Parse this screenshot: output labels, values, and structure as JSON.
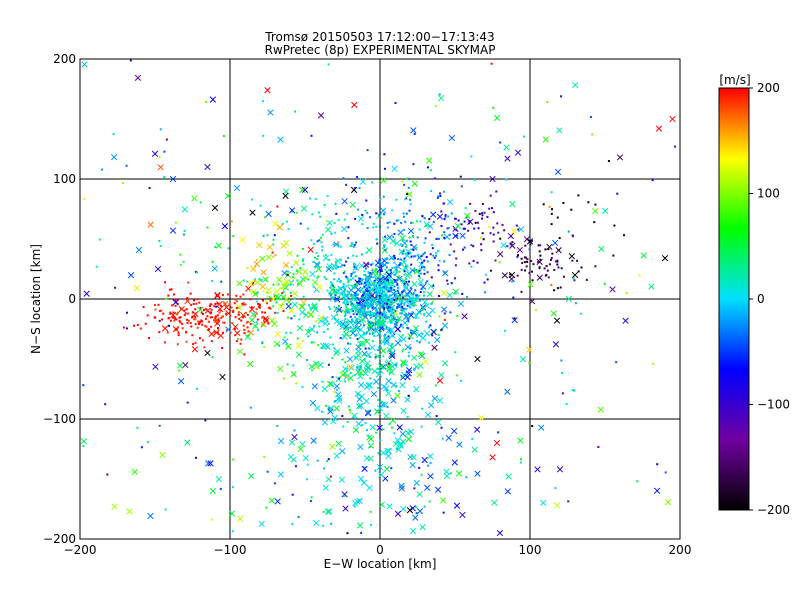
{
  "chart_data": {
    "type": "scatter",
    "title": "Tromsø 20150503 17:12:00−17:13:43",
    "subtitle": "RwPretec (8p) EXPERIMENTAL SKYMAP",
    "xlabel": "E−W location [km]",
    "ylabel": "N−S location [km]",
    "xlim": [
      -200,
      200
    ],
    "ylim": [
      -200,
      200
    ],
    "xticks": [
      -200,
      -100,
      0,
      100,
      200
    ],
    "yticks": [
      -200,
      -100,
      0,
      100,
      200
    ],
    "xtick_labels": [
      "−200",
      "−100",
      "0",
      "100",
      "200"
    ],
    "ytick_labels": [
      "−200",
      "−100",
      "0",
      "100",
      "200"
    ],
    "grid": true,
    "colorbar": {
      "label": "[m/s]",
      "range": [
        -200,
        200
      ],
      "ticks": [
        200,
        100,
        0,
        -100,
        -200
      ],
      "tick_labels": [
        "200",
        "100",
        "0",
        "−100",
        "−200"
      ],
      "colormap": [
        "#000000",
        "#7000a0",
        "#0000ff",
        "#00e0ff",
        "#00ff00",
        "#ffff00",
        "#ff0000"
      ]
    },
    "marker_types": [
      "dot",
      "x"
    ],
    "clusters": [
      {
        "center": [
          0,
          0
        ],
        "spread": [
          14,
          16
        ],
        "count": 650,
        "velocity": -20,
        "velocity_spread": 30,
        "markers": "dot"
      },
      {
        "center": [
          -5,
          -35
        ],
        "spread": [
          22,
          45
        ],
        "count": 450,
        "velocity": 10,
        "velocity_spread": 25,
        "markers": "x"
      },
      {
        "center": [
          20,
          40
        ],
        "spread": [
          25,
          30
        ],
        "count": 200,
        "velocity": -40,
        "velocity_spread": 25,
        "markers": "dot"
      },
      {
        "center": [
          -40,
          20
        ],
        "spread": [
          25,
          35
        ],
        "count": 180,
        "velocity": 20,
        "velocity_spread": 20,
        "markers": "dot"
      },
      {
        "center": [
          -125,
          -15
        ],
        "spread": [
          16,
          12
        ],
        "count": 180,
        "velocity": 200,
        "velocity_spread": 10,
        "markers": "dot"
      },
      {
        "center": [
          -90,
          -10
        ],
        "spread": [
          12,
          10
        ],
        "count": 80,
        "velocity": 195,
        "velocity_spread": 10,
        "markers": "dot"
      },
      {
        "center": [
          -70,
          20
        ],
        "spread": [
          12,
          18
        ],
        "count": 50,
        "velocity": 130,
        "velocity_spread": 30,
        "markers": "x"
      },
      {
        "center": [
          -60,
          -20
        ],
        "spread": [
          15,
          20
        ],
        "count": 40,
        "velocity": 90,
        "velocity_spread": 30,
        "markers": "x"
      },
      {
        "center": [
          65,
          50
        ],
        "spread": [
          18,
          20
        ],
        "count": 80,
        "velocity": -110,
        "velocity_spread": 40,
        "markers": "dot"
      },
      {
        "center": [
          110,
          30
        ],
        "spread": [
          15,
          10
        ],
        "count": 70,
        "velocity": -170,
        "velocity_spread": 20,
        "markers": "dot"
      },
      {
        "center": [
          130,
          70
        ],
        "spread": [
          15,
          12
        ],
        "count": 15,
        "velocity": -195,
        "velocity_spread": 5,
        "markers": "dot"
      },
      {
        "center": [
          0,
          -150
        ],
        "spread": [
          50,
          30
        ],
        "count": 120,
        "velocity": 0,
        "velocity_spread": 40,
        "markers": "x"
      },
      {
        "center": [
          0,
          0
        ],
        "spread": [
          110,
          110
        ],
        "count": 400,
        "velocity": 0,
        "velocity_spread": 90,
        "markers": "mixed"
      }
    ],
    "notable_points": [
      {
        "x": -75,
        "y": 174,
        "v": 200,
        "marker": "x"
      },
      {
        "x": 186,
        "y": 142,
        "v": 200,
        "marker": "x"
      },
      {
        "x": 195,
        "y": 150,
        "v": 200,
        "marker": "x"
      },
      {
        "x": -150,
        "y": 121,
        "v": -100,
        "marker": "x"
      },
      {
        "x": -115,
        "y": 110,
        "v": -100,
        "marker": "x"
      },
      {
        "x": -110,
        "y": 76,
        "v": -200,
        "marker": "x"
      },
      {
        "x": -63,
        "y": 86,
        "v": -200,
        "marker": "x"
      },
      {
        "x": -85,
        "y": 72,
        "v": -200,
        "marker": "x"
      },
      {
        "x": 190,
        "y": 34,
        "v": -200,
        "marker": "x"
      },
      {
        "x": 155,
        "y": 8,
        "v": -130,
        "marker": "x"
      },
      {
        "x": 100,
        "y": 48,
        "v": -200,
        "marker": "x"
      },
      {
        "x": 118,
        "y": -18,
        "v": -200,
        "marker": "x"
      },
      {
        "x": -115,
        "y": -45,
        "v": -200,
        "marker": "x"
      },
      {
        "x": -105,
        "y": -65,
        "v": -200,
        "marker": "x"
      },
      {
        "x": 65,
        "y": -50,
        "v": -200,
        "marker": "x"
      },
      {
        "x": 75,
        "y": -132,
        "v": 200,
        "marker": "x"
      },
      {
        "x": 78,
        "y": -120,
        "v": 200,
        "marker": "x"
      },
      {
        "x": 40,
        "y": -68,
        "v": 200,
        "marker": "x"
      },
      {
        "x": 120,
        "y": -142,
        "v": -100,
        "marker": "x"
      },
      {
        "x": 105,
        "y": -142,
        "v": -100,
        "marker": "x"
      },
      {
        "x": -57,
        "y": -115,
        "v": -100,
        "marker": "x"
      },
      {
        "x": 12,
        "y": -179,
        "v": -100,
        "marker": "x"
      },
      {
        "x": 20,
        "y": -176,
        "v": -200,
        "marker": "x"
      },
      {
        "x": 55,
        "y": -180,
        "v": -100,
        "marker": "x"
      },
      {
        "x": 118,
        "y": -172,
        "v": 120,
        "marker": "x"
      },
      {
        "x": -177,
        "y": -173,
        "v": 110,
        "marker": "x"
      },
      {
        "x": -167,
        "y": -177,
        "v": 110,
        "marker": "x"
      },
      {
        "x": -113,
        "y": -137,
        "v": -70,
        "marker": "x"
      },
      {
        "x": -145,
        "y": -130,
        "v": 100,
        "marker": "x"
      },
      {
        "x": 85,
        "y": 117,
        "v": -100,
        "marker": "x"
      },
      {
        "x": 92,
        "y": 122,
        "v": -100,
        "marker": "x"
      },
      {
        "x": -50,
        "y": 91,
        "v": -100,
        "marker": "x"
      },
      {
        "x": 75,
        "y": 100,
        "v": -100,
        "marker": "x"
      },
      {
        "x": 88,
        "y": 20,
        "v": -200,
        "marker": "x"
      },
      {
        "x": 130,
        "y": 20,
        "v": -200,
        "marker": "x"
      },
      {
        "x": 160,
        "y": 118,
        "v": -160,
        "marker": "x"
      },
      {
        "x": -148,
        "y": 25,
        "v": -80,
        "marker": "x"
      },
      {
        "x": -138,
        "y": 57,
        "v": -50,
        "marker": "x"
      },
      {
        "x": -138,
        "y": 100,
        "v": -50,
        "marker": "x"
      }
    ]
  }
}
